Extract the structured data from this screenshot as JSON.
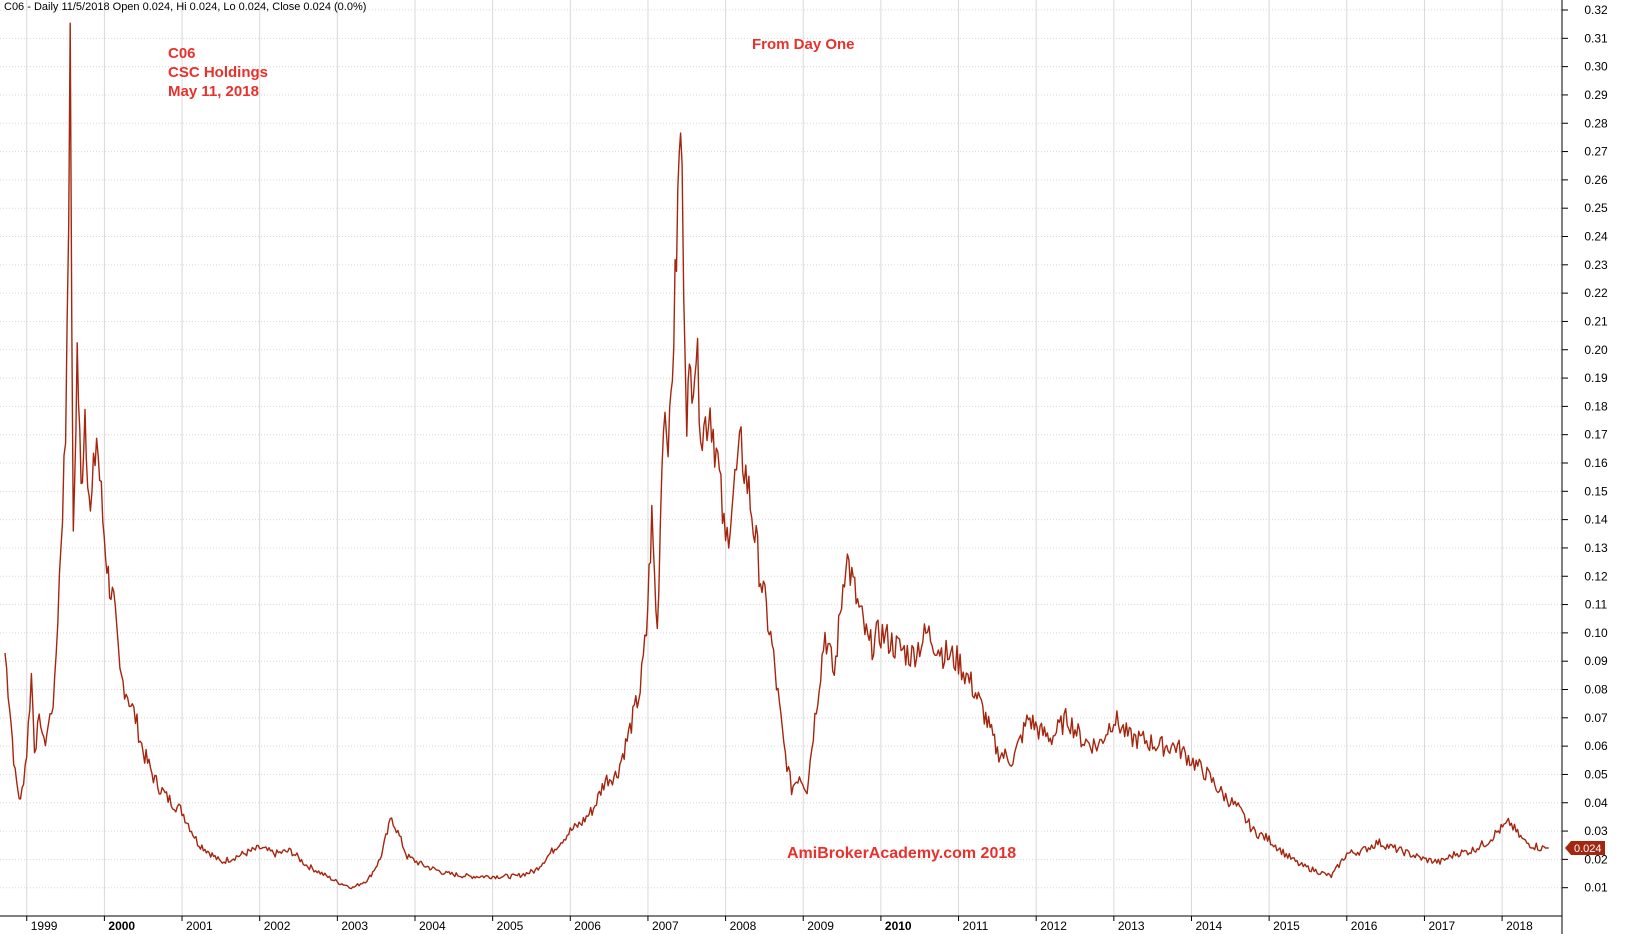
{
  "header": {
    "text": "C06 - Daily 11/5/2018 Open 0.024, Hi 0.024, Lo 0.024, Close 0.024 (0.0%)"
  },
  "annotations": {
    "symbol": "C06",
    "company": "CSC Holdings",
    "date": "May 11,  2018",
    "center_title": "From Day One",
    "watermark": "AmiBrokerAcademy.com  2018"
  },
  "colors": {
    "price_line": "#a5260e",
    "annotation": "#e8312c",
    "grid": "#d8d8d8",
    "last_price_badge": "#a5260e"
  },
  "chart_data": {
    "type": "line",
    "title": "",
    "xlabel": "",
    "ylabel": "",
    "ylim": [
      0.0,
      0.32
    ],
    "xlim": [
      1998.72,
      2018.72
    ],
    "grid": true,
    "y_ticks": [
      "0.01",
      "0.02",
      "0.03",
      "0.04",
      "0.05",
      "0.06",
      "0.07",
      "0.08",
      "0.09",
      "0.10",
      "0.11",
      "0.12",
      "0.13",
      "0.14",
      "0.15",
      "0.16",
      "0.17",
      "0.18",
      "0.19",
      "0.20",
      "0.21",
      "0.22",
      "0.23",
      "0.24",
      "0.25",
      "0.26",
      "0.27",
      "0.28",
      "0.29",
      "0.30",
      "0.31",
      "0.32"
    ],
    "x_ticks": [
      {
        "label": "1999",
        "x": 1999.0,
        "bold": false
      },
      {
        "label": "2000",
        "x": 2000.0,
        "bold": true
      },
      {
        "label": "2001",
        "x": 2001.0,
        "bold": false
      },
      {
        "label": "2002",
        "x": 2002.0,
        "bold": false
      },
      {
        "label": "2003",
        "x": 2003.0,
        "bold": false
      },
      {
        "label": "2004",
        "x": 2004.0,
        "bold": false
      },
      {
        "label": "2005",
        "x": 2005.0,
        "bold": false
      },
      {
        "label": "2006",
        "x": 2006.0,
        "bold": false
      },
      {
        "label": "2007",
        "x": 2007.0,
        "bold": false
      },
      {
        "label": "2008",
        "x": 2008.0,
        "bold": false
      },
      {
        "label": "2009",
        "x": 2009.0,
        "bold": false
      },
      {
        "label": "2010",
        "x": 2010.0,
        "bold": true
      },
      {
        "label": "2011",
        "x": 2011.0,
        "bold": false
      },
      {
        "label": "2012",
        "x": 2012.0,
        "bold": false
      },
      {
        "label": "2013",
        "x": 2013.0,
        "bold": false
      },
      {
        "label": "2014",
        "x": 2014.0,
        "bold": false
      },
      {
        "label": "2015",
        "x": 2015.0,
        "bold": false
      },
      {
        "label": "2016",
        "x": 2016.0,
        "bold": false
      },
      {
        "label": "2017",
        "x": 2017.0,
        "bold": false
      },
      {
        "label": "2018",
        "x": 2018.0,
        "bold": false
      }
    ],
    "last_price_label": "0.024",
    "series": [
      {
        "name": "C06",
        "x": [
          1998.72,
          1998.78,
          1998.85,
          1998.92,
          1999.0,
          1999.06,
          1999.1,
          1999.18,
          1999.22,
          1999.3,
          1999.36,
          1999.42,
          1999.5,
          1999.56,
          1999.6,
          1999.65,
          1999.7,
          1999.75,
          1999.82,
          1999.9,
          1999.98,
          2000.05,
          2000.12,
          2000.2,
          2000.28,
          2000.4,
          2000.5,
          2000.65,
          2000.8,
          2001.0,
          2001.2,
          2001.5,
          2001.7,
          2002.0,
          2002.2,
          2002.4,
          2002.6,
          2002.8,
          2003.0,
          2003.2,
          2003.4,
          2003.55,
          2003.7,
          2003.9,
          2004.1,
          2004.4,
          2004.7,
          2005.0,
          2005.3,
          2005.55,
          2005.8,
          2006.0,
          2006.15,
          2006.3,
          2006.45,
          2006.6,
          2006.75,
          2006.9,
          2006.98,
          2007.05,
          2007.12,
          2007.2,
          2007.28,
          2007.35,
          2007.42,
          2007.5,
          2007.55,
          2007.62,
          2007.7,
          2007.8,
          2007.9,
          2008.0,
          2008.1,
          2008.2,
          2008.3,
          2008.45,
          2008.6,
          2008.75,
          2008.85,
          2008.95,
          2009.05,
          2009.15,
          2009.28,
          2009.4,
          2009.55,
          2009.7,
          2009.85,
          2010.0,
          2010.2,
          2010.4,
          2010.6,
          2010.8,
          2011.0,
          2011.2,
          2011.35,
          2011.5,
          2011.7,
          2011.9,
          2012.05,
          2012.2,
          2012.4,
          2012.6,
          2012.8,
          2013.0,
          2013.2,
          2013.4,
          2013.6,
          2013.8,
          2014.0,
          2014.2,
          2014.4,
          2014.6,
          2014.8,
          2015.0,
          2015.2,
          2015.4,
          2015.6,
          2015.8,
          2016.0,
          2016.2,
          2016.4,
          2016.6,
          2016.8,
          2017.0,
          2017.2,
          2017.4,
          2017.6,
          2017.8,
          2017.95,
          2018.1,
          2018.2,
          2018.3,
          2018.4,
          2018.5,
          2018.6
        ],
        "y": [
          0.093,
          0.075,
          0.05,
          0.04,
          0.058,
          0.085,
          0.06,
          0.07,
          0.06,
          0.07,
          0.08,
          0.12,
          0.17,
          0.3,
          0.13,
          0.2,
          0.15,
          0.18,
          0.14,
          0.17,
          0.14,
          0.12,
          0.11,
          0.085,
          0.08,
          0.07,
          0.058,
          0.048,
          0.042,
          0.037,
          0.026,
          0.019,
          0.021,
          0.024,
          0.022,
          0.023,
          0.018,
          0.015,
          0.012,
          0.01,
          0.013,
          0.02,
          0.035,
          0.021,
          0.018,
          0.015,
          0.014,
          0.014,
          0.014,
          0.016,
          0.024,
          0.03,
          0.033,
          0.038,
          0.048,
          0.05,
          0.064,
          0.08,
          0.1,
          0.14,
          0.1,
          0.18,
          0.17,
          0.22,
          0.28,
          0.18,
          0.19,
          0.2,
          0.17,
          0.18,
          0.16,
          0.13,
          0.15,
          0.165,
          0.15,
          0.12,
          0.095,
          0.06,
          0.045,
          0.05,
          0.045,
          0.07,
          0.1,
          0.085,
          0.128,
          0.11,
          0.095,
          0.1,
          0.095,
          0.092,
          0.1,
          0.093,
          0.09,
          0.08,
          0.07,
          0.058,
          0.055,
          0.07,
          0.065,
          0.063,
          0.07,
          0.062,
          0.06,
          0.07,
          0.063,
          0.062,
          0.06,
          0.06,
          0.055,
          0.05,
          0.043,
          0.038,
          0.03,
          0.027,
          0.022,
          0.018,
          0.016,
          0.014,
          0.022,
          0.023,
          0.026,
          0.024,
          0.022,
          0.02,
          0.019,
          0.022,
          0.023,
          0.026,
          0.03,
          0.033,
          0.029,
          0.026,
          0.025,
          0.024,
          0.024
        ]
      }
    ]
  }
}
